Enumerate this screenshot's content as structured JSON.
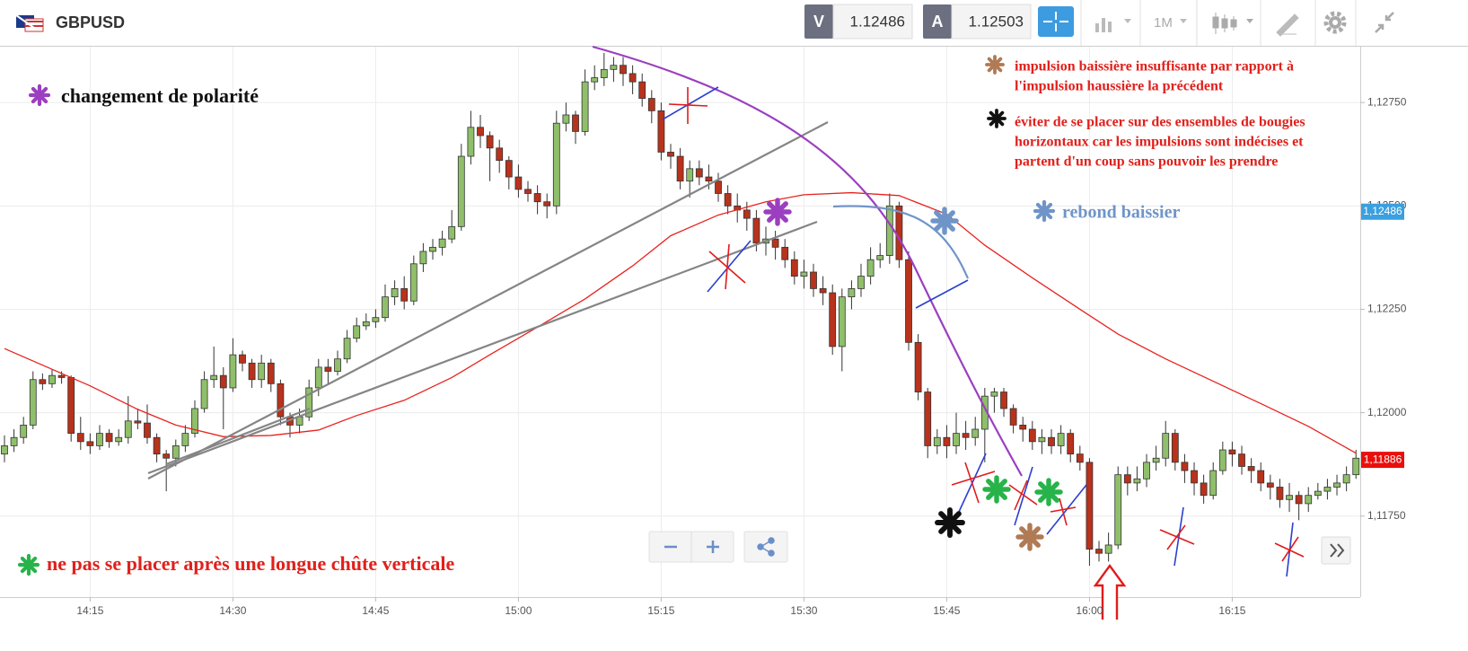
{
  "header": {
    "symbol": "GBPUSD",
    "sell_label": "V",
    "sell_price": "1.12486",
    "buy_label": "A",
    "buy_price": "1.12503",
    "timeframe": "1M"
  },
  "annotations": {
    "polarity": "changement de polarité",
    "insufficient": [
      "impulsion baissière insuffisante par rapport à",
      "l'impulsion haussière la précédent"
    ],
    "avoid": [
      "éviter de se placer sur des ensembles de bougies",
      "horizontaux car les impulsions sont indécises et",
      "partent d'un coup sans pouvoir les prendre"
    ],
    "rebound": "rebond baissier",
    "vertical_fall": "ne pas se placer après une longue chûte verticale"
  },
  "chart_data": {
    "type": "candlestick",
    "up_color": "#8fbf6a",
    "down_color": "#b8321c",
    "grid": true,
    "open": [
      1.119,
      1.1192,
      1.1194,
      1.1197,
      1.1208,
      1.1207,
      1.1209,
      1.12085,
      1.1195,
      1.1193,
      1.1192,
      1.1195,
      1.1193,
      1.1194,
      1.1198,
      1.11975,
      1.1194,
      1.119,
      1.1189,
      1.1192,
      1.1195,
      1.1201,
      1.1208,
      1.1209,
      1.1206,
      1.1214,
      1.1212,
      1.1208,
      1.1212,
      1.1207,
      1.1199,
      1.1197,
      1.1199,
      1.1206,
      1.1211,
      1.121,
      1.1213,
      1.1218,
      1.1221,
      1.1222,
      1.1223,
      1.1228,
      1.123,
      1.1227,
      1.1236,
      1.1239,
      1.124,
      1.1242,
      1.1245,
      1.1262,
      1.1269,
      1.1267,
      1.1264,
      1.1261,
      1.1257,
      1.1254,
      1.1253,
      1.1251,
      1.125,
      1.127,
      1.1272,
      1.1268,
      1.128,
      1.1281,
      1.1283,
      1.1284,
      1.1282,
      1.128,
      1.1276,
      1.1273,
      1.1263,
      1.1262,
      1.1256,
      1.1259,
      1.1257,
      1.1256,
      1.1253,
      1.125,
      1.1249,
      1.1247,
      1.1241,
      1.1242,
      1.124,
      1.1237,
      1.1233,
      1.1234,
      1.123,
      1.1229,
      1.1216,
      1.1228,
      1.123,
      1.1233,
      1.1237,
      1.1238,
      1.125,
      1.1237,
      1.1217,
      1.1205,
      1.1192,
      1.1194,
      1.1192,
      1.1195,
      1.1194,
      1.1196,
      1.1204,
      1.1205,
      1.1201,
      1.1197,
      1.1196,
      1.1193,
      1.1194,
      1.1192,
      1.1195,
      1.119,
      1.1188,
      1.1167,
      1.1166,
      1.1168,
      1.1185,
      1.1183,
      1.1184,
      1.1188,
      1.1189,
      1.1195,
      1.1188,
      1.1186,
      1.1183,
      1.118,
      1.1186,
      1.1191,
      1.119,
      1.1187,
      1.1186,
      1.1183,
      1.1182,
      1.1179,
      1.118,
      1.1178,
      1.118,
      1.1181,
      1.1182,
      1.1183,
      1.1185
    ],
    "high": [
      1.11945,
      1.1196,
      1.1199,
      1.121,
      1.12095,
      1.12105,
      1.121,
      1.1209,
      1.1199,
      1.1195,
      1.1197,
      1.1196,
      1.1196,
      1.1204,
      1.1201,
      1.1202,
      1.1195,
      1.1191,
      1.11935,
      1.1197,
      1.1203,
      1.121,
      1.1216,
      1.1211,
      1.1218,
      1.1215,
      1.1213,
      1.1214,
      1.1213,
      1.1208,
      1.12,
      1.1201,
      1.1208,
      1.1213,
      1.1213,
      1.1215,
      1.122,
      1.1223,
      1.1224,
      1.1225,
      1.1231,
      1.1232,
      1.1233,
      1.1238,
      1.1241,
      1.1242,
      1.1244,
      1.1249,
      1.1265,
      1.1273,
      1.1272,
      1.1268,
      1.1266,
      1.1262,
      1.126,
      1.1256,
      1.1255,
      1.1253,
      1.1273,
      1.1275,
      1.1273,
      1.1283,
      1.1284,
      1.1287,
      1.1286,
      1.1286,
      1.1284,
      1.1282,
      1.1278,
      1.1275,
      1.1265,
      1.1264,
      1.1261,
      1.1261,
      1.126,
      1.1258,
      1.1255,
      1.1253,
      1.1251,
      1.1249,
      1.1245,
      1.1244,
      1.1242,
      1.1239,
      1.1237,
      1.1236,
      1.1233,
      1.1231,
      1.123,
      1.1232,
      1.1236,
      1.124,
      1.1241,
      1.1253,
      1.1251,
      1.1239,
      1.1219,
      1.1206,
      1.1196,
      1.1197,
      1.12,
      1.1198,
      1.1199,
      1.1206,
      1.1206,
      1.1206,
      1.1202,
      1.1199,
      1.1198,
      1.1196,
      1.1196,
      1.1197,
      1.1196,
      1.1192,
      1.1189,
      1.1169,
      1.1171,
      1.1187,
      1.1187,
      1.1187,
      1.119,
      1.1192,
      1.1198,
      1.1196,
      1.119,
      1.1188,
      1.1185,
      1.1188,
      1.1193,
      1.1193,
      1.1192,
      1.1189,
      1.1188,
      1.1185,
      1.1184,
      1.1183,
      1.1181,
      1.1182,
      1.1183,
      1.1184,
      1.1185,
      1.1187,
      1.1191
    ],
    "low": [
      1.1188,
      1.11905,
      1.11925,
      1.1196,
      1.12055,
      1.1206,
      1.1207,
      1.1193,
      1.1191,
      1.119,
      1.1191,
      1.11915,
      1.1192,
      1.11925,
      1.1196,
      1.11925,
      1.1188,
      1.1181,
      1.1187,
      1.11905,
      1.1194,
      1.12,
      1.1206,
      1.1196,
      1.1205,
      1.121,
      1.1206,
      1.1206,
      1.1205,
      1.1197,
      1.1194,
      1.1195,
      1.1198,
      1.1204,
      1.1207,
      1.1209,
      1.1212,
      1.1217,
      1.122,
      1.12205,
      1.1222,
      1.1226,
      1.1225,
      1.1226,
      1.1234,
      1.1237,
      1.1238,
      1.1241,
      1.1244,
      1.126,
      1.1264,
      1.1256,
      1.1258,
      1.1254,
      1.1252,
      1.1251,
      1.1248,
      1.1247,
      1.1248,
      1.1268,
      1.1265,
      1.1267,
      1.1278,
      1.1279,
      1.128,
      1.1279,
      1.1277,
      1.1274,
      1.127,
      1.1261,
      1.1259,
      1.1254,
      1.1252,
      1.1255,
      1.1254,
      1.1251,
      1.1248,
      1.1246,
      1.1244,
      1.1239,
      1.1238,
      1.1237,
      1.1235,
      1.1231,
      1.123,
      1.1228,
      1.1226,
      1.1214,
      1.121,
      1.1225,
      1.1228,
      1.1231,
      1.1235,
      1.1236,
      1.1235,
      1.1215,
      1.1203,
      1.1189,
      1.119,
      1.1189,
      1.119,
      1.1191,
      1.1192,
      1.1188,
      1.12,
      1.1199,
      1.1195,
      1.1193,
      1.1191,
      1.119,
      1.119,
      1.119,
      1.1188,
      1.1186,
      1.1163,
      1.1164,
      1.1164,
      1.1167,
      1.118,
      1.1181,
      1.1182,
      1.1186,
      1.1187,
      1.1186,
      1.1183,
      1.118,
      1.1178,
      1.1179,
      1.1185,
      1.1187,
      1.1185,
      1.1183,
      1.1181,
      1.1179,
      1.1177,
      1.1176,
      1.1174,
      1.1176,
      1.1179,
      1.1179,
      1.118,
      1.1181,
      1.1184
    ],
    "close": [
      1.1192,
      1.1194,
      1.1197,
      1.1208,
      1.1207,
      1.1209,
      1.12085,
      1.1195,
      1.1193,
      1.1192,
      1.1195,
      1.1193,
      1.1194,
      1.1198,
      1.11975,
      1.1194,
      1.119,
      1.1189,
      1.1192,
      1.1195,
      1.1201,
      1.1208,
      1.1209,
      1.1206,
      1.1214,
      1.1212,
      1.1208,
      1.1212,
      1.1207,
      1.1199,
      1.1197,
      1.1199,
      1.1206,
      1.1211,
      1.121,
      1.1213,
      1.1218,
      1.1221,
      1.1222,
      1.1223,
      1.1228,
      1.123,
      1.1227,
      1.1236,
      1.1239,
      1.124,
      1.1242,
      1.1245,
      1.1262,
      1.1269,
      1.1267,
      1.1264,
      1.1261,
      1.1257,
      1.1254,
      1.1253,
      1.1251,
      1.125,
      1.127,
      1.1272,
      1.1268,
      1.128,
      1.1281,
      1.1283,
      1.1284,
      1.1282,
      1.128,
      1.1276,
      1.1273,
      1.1263,
      1.1262,
      1.1256,
      1.1259,
      1.1257,
      1.1256,
      1.1253,
      1.125,
      1.1249,
      1.1247,
      1.1241,
      1.1242,
      1.124,
      1.1237,
      1.1233,
      1.1234,
      1.123,
      1.1229,
      1.1216,
      1.1228,
      1.123,
      1.1233,
      1.1237,
      1.1238,
      1.125,
      1.1237,
      1.1217,
      1.1205,
      1.1192,
      1.1194,
      1.1192,
      1.1195,
      1.1194,
      1.1196,
      1.1204,
      1.1205,
      1.1201,
      1.1197,
      1.1196,
      1.1193,
      1.1194,
      1.1192,
      1.1195,
      1.119,
      1.1188,
      1.1167,
      1.1166,
      1.1168,
      1.1185,
      1.1183,
      1.1184,
      1.1188,
      1.1189,
      1.1195,
      1.1188,
      1.1186,
      1.1183,
      1.118,
      1.1186,
      1.1191,
      1.119,
      1.1187,
      1.1186,
      1.1183,
      1.1182,
      1.1179,
      1.118,
      1.1178,
      1.118,
      1.1181,
      1.1182,
      1.1183,
      1.1185,
      1.1189
    ],
    "moving_average": {
      "color": "#e8231f",
      "x": [
        0,
        9,
        14,
        18,
        23,
        28,
        33,
        37,
        42,
        47,
        51,
        56,
        61,
        66,
        70,
        75,
        80,
        84,
        89,
        94,
        99,
        103,
        108,
        113,
        117,
        122,
        127,
        132,
        137,
        142
      ],
      "values": [
        1.12155,
        1.12065,
        1.12008,
        1.1197,
        1.11942,
        1.11945,
        1.11958,
        1.11993,
        1.1203,
        1.12085,
        1.1214,
        1.12207,
        1.12275,
        1.12355,
        1.12428,
        1.12478,
        1.1251,
        1.12527,
        1.12532,
        1.12525,
        1.1248,
        1.12405,
        1.12326,
        1.1225,
        1.1219,
        1.1213,
        1.12076,
        1.12022,
        1.11967,
        1.11902
      ]
    },
    "xlim": [
      -0.47,
      142.45
    ],
    "xticks": [
      {
        "value": 9,
        "label": "14:15"
      },
      {
        "value": 24,
        "label": "14:30"
      },
      {
        "value": 39,
        "label": "14:45"
      },
      {
        "value": 54,
        "label": "15:00"
      },
      {
        "value": 69,
        "label": "15:15"
      },
      {
        "value": 84,
        "label": "15:30"
      },
      {
        "value": 99,
        "label": "15:45"
      },
      {
        "value": 114,
        "label": "16:00"
      },
      {
        "value": 129,
        "label": "16:15"
      }
    ],
    "ylim": [
      1.11554,
      1.12885
    ],
    "yticks": [
      {
        "value": 1.1175,
        "label": "1,11750"
      },
      {
        "value": 1.12,
        "label": "1,12000"
      },
      {
        "value": 1.1225,
        "label": "1,12250"
      },
      {
        "value": 1.125,
        "label": "1,12500"
      },
      {
        "value": 1.1275,
        "label": "1,12750"
      }
    ],
    "price_markers": [
      {
        "value": 1.12486,
        "label": "1,12486",
        "color": "#3aa0e0"
      },
      {
        "value": 1.11886,
        "label": "1,11886",
        "color": "#e8100c"
      }
    ]
  }
}
